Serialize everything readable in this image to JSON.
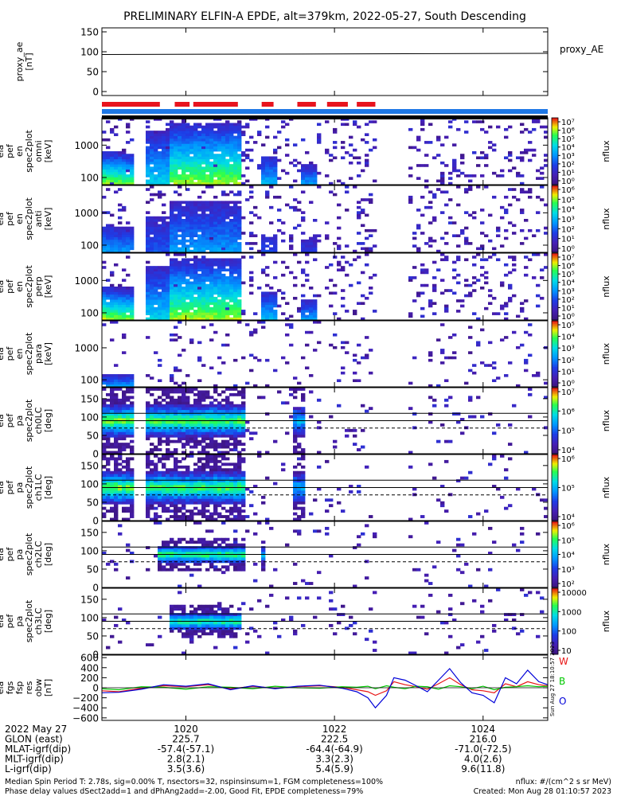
{
  "figure": {
    "title": "PRELIMINARY ELFIN-A EPDE, alt=379km, 2022-05-27, South Descending",
    "created": "Created: Mon Aug 28 01:10:57 2023",
    "side_stamp": "Sun Aug 27 18:10:57 2023",
    "footer_left_1": "Median Spin Period T: 2.78s, sig=0.00% T, nsectors=32, nspinsinsum=1, FGM completeness=100%",
    "footer_left_2": "Phase delay values dSect2add=1 and dPhAng2add=-2.00, Good Fit, EPDE completeness=79%",
    "footer_right_1": "nflux: #/(cm^2 s sr MeV)"
  },
  "colors": {
    "axes": "#000000",
    "bar_red": "#e8141e",
    "bar_blue": "#1e78e6",
    "bar_black": "#000000",
    "flux_low": "#3c1478",
    "flux_mid": "#00c8ff",
    "flux_high": "#30ff30",
    "mag_red": "#e81414",
    "mag_green": "#00c800",
    "mag_blue": "#0000d8"
  },
  "chart_data": {
    "type": "heatmap",
    "x_ticks": [
      "1020",
      "1022",
      "1024"
    ],
    "x_tick_values": [
      1020,
      1022,
      1024
    ],
    "x_range": [
      1018.87,
      1024.87
    ],
    "gap_intervals": [
      [
        1019.3,
        1019.45
      ],
      [
        1021.8,
        1021.86
      ],
      [
        1021.98,
        1022.0
      ],
      [
        1022.55,
        1022.98
      ]
    ],
    "bar_red_segments": [
      [
        1018.87,
        1019.65
      ],
      [
        1019.85,
        1020.05
      ],
      [
        1020.1,
        1020.7
      ],
      [
        1021.02,
        1021.18
      ],
      [
        1021.5,
        1021.75
      ],
      [
        1021.9,
        1022.18
      ],
      [
        1022.3,
        1022.55
      ]
    ],
    "panels": [
      {
        "ylabel": "proxy_ae [nT]",
        "kind": "line",
        "legend": "proxy_AE",
        "yticks": [
          "150",
          "100",
          "50",
          "0"
        ],
        "ytick_values": [
          150,
          100,
          50,
          0
        ],
        "ylim": [
          -10,
          160
        ],
        "x": [
          1018.87,
          1024.87
        ],
        "y": [
          93,
          96
        ]
      },
      {
        "ylabel": "ela pef en spec2plot omni [keV]",
        "kind": "energy",
        "yticks": [
          "1000",
          "100"
        ],
        "ytick_values": [
          1000,
          100
        ],
        "ylim_log": [
          60,
          7000
        ],
        "cbar_ticks": [
          "10⁷",
          "10⁶",
          "10⁵",
          "10⁴",
          "10³",
          "10²",
          "10¹",
          "10⁰"
        ],
        "cbar_label": "nflux",
        "profile": "bright",
        "seed": 11
      },
      {
        "ylabel": "ela pef en spec2plot anti [keV]",
        "kind": "energy",
        "yticks": [
          "1000",
          "100"
        ],
        "ytick_values": [
          1000,
          100
        ],
        "ylim_log": [
          60,
          7000
        ],
        "cbar_ticks": [
          "10⁶",
          "10⁵",
          "10⁴",
          "10³",
          "10²",
          "10¹",
          "10⁰"
        ],
        "cbar_label": "nflux",
        "profile": "faint",
        "seed": 23
      },
      {
        "ylabel": "ela pef en spec2plot perp [keV]",
        "kind": "energy",
        "yticks": [
          "1000",
          "100"
        ],
        "ytick_values": [
          1000,
          100
        ],
        "ylim_log": [
          60,
          7000
        ],
        "cbar_ticks": [
          "10⁷",
          "10⁶",
          "10⁵",
          "10⁴",
          "10³",
          "10²",
          "10¹",
          "10⁰"
        ],
        "cbar_label": "nflux",
        "profile": "bright",
        "seed": 37
      },
      {
        "ylabel": "ela pef en spec2plot para [keV]",
        "kind": "energy",
        "yticks": [
          "1000",
          "100"
        ],
        "ytick_values": [
          1000,
          100
        ],
        "ylim_log": [
          60,
          7000
        ],
        "cbar_ticks": [
          "10⁵",
          "10⁴",
          "10³",
          "10²",
          "10¹",
          "10⁰"
        ],
        "cbar_label": "nflux",
        "profile": "veryfaint",
        "seed": 41
      },
      {
        "ylabel": "ela pef pa spec2plot ch0LC [deg]",
        "kind": "pitch",
        "yticks": [
          "150",
          "100",
          "50",
          "0"
        ],
        "ytick_values": [
          150,
          100,
          50,
          0
        ],
        "ylim": [
          0,
          180
        ],
        "lc_lines": [
          110,
          90,
          70
        ],
        "cbar_ticks": [
          "10⁷",
          "10⁶",
          "10⁵",
          "10⁴"
        ],
        "cbar_label": "nflux",
        "profile": "ch0",
        "seed": 53
      },
      {
        "ylabel": "ela pef pa spec2plot ch1LC [deg]",
        "kind": "pitch",
        "yticks": [
          "150",
          "100",
          "50",
          "0"
        ],
        "ytick_values": [
          150,
          100,
          50,
          0
        ],
        "ylim": [
          0,
          180
        ],
        "lc_lines": [
          110,
          90,
          70
        ],
        "cbar_ticks": [
          "10⁶",
          "10⁵",
          "10⁴"
        ],
        "cbar_label": "nflux",
        "profile": "ch1",
        "seed": 67
      },
      {
        "ylabel": "ela pef pa spec2plot ch2LC [deg]",
        "kind": "pitch",
        "yticks": [
          "150",
          "100",
          "50",
          "0"
        ],
        "ytick_values": [
          150,
          100,
          50,
          0
        ],
        "ylim": [
          0,
          180
        ],
        "lc_lines": [
          110,
          90,
          70
        ],
        "cbar_ticks": [
          "10⁶",
          "10⁵",
          "10⁴",
          "10³",
          "10²"
        ],
        "cbar_label": "nflux",
        "profile": "ch2",
        "seed": 79
      },
      {
        "ylabel": "ela pef pa spec2plot ch3LC [deg]",
        "kind": "pitch",
        "yticks": [
          "150",
          "100",
          "50",
          "0"
        ],
        "ytick_values": [
          150,
          100,
          50,
          0
        ],
        "ylim": [
          0,
          180
        ],
        "lc_lines": [
          110,
          90,
          70
        ],
        "cbar_ticks": [
          "10000",
          "1000",
          "100",
          "10"
        ],
        "cbar_label": "nflux",
        "profile": "ch3",
        "seed": 97
      },
      {
        "ylabel": "ela fgs fsp res obw [nT]",
        "kind": "mag",
        "yticks": [
          "600",
          "400",
          "200",
          "0",
          "−200",
          "−400",
          "−600"
        ],
        "ytick_values": [
          600,
          400,
          200,
          0,
          -200,
          -400,
          -600
        ],
        "ylim": [
          -650,
          650
        ],
        "legend": [
          "W",
          "B",
          "O"
        ],
        "series": [
          {
            "name": "W",
            "x": [
              1018.87,
              1019.1,
              1019.4,
              1019.7,
              1020.0,
              1020.3,
              1020.6,
              1020.9,
              1021.2,
              1021.5,
              1021.8,
              1022.1,
              1022.3,
              1022.45,
              1022.55,
              1022.7,
              1022.8,
              1022.95,
              1023.1,
              1023.25,
              1023.4,
              1023.55,
              1023.7,
              1023.85,
              1024.0,
              1024.15,
              1024.3,
              1024.45,
              1024.6,
              1024.75,
              1024.87
            ],
            "y": [
              -60,
              -80,
              -10,
              40,
              20,
              60,
              -20,
              30,
              -10,
              20,
              40,
              10,
              -40,
              -80,
              -150,
              -60,
              120,
              60,
              20,
              -30,
              80,
              200,
              60,
              -40,
              -60,
              -100,
              80,
              20,
              120,
              60,
              40
            ]
          },
          {
            "name": "B",
            "x": [
              1018.87,
              1019.1,
              1019.4,
              1019.7,
              1020.0,
              1020.3,
              1020.6,
              1020.9,
              1021.2,
              1021.5,
              1021.8,
              1022.1,
              1022.3,
              1022.45,
              1022.55,
              1022.7,
              1022.8,
              1022.95,
              1023.1,
              1023.25,
              1023.4,
              1023.55,
              1023.7,
              1023.85,
              1024.0,
              1024.15,
              1024.3,
              1024.45,
              1024.6,
              1024.75,
              1024.87
            ],
            "y": [
              -20,
              -40,
              20,
              10,
              -30,
              20,
              10,
              -20,
              30,
              0,
              -10,
              20,
              10,
              30,
              -20,
              40,
              10,
              -20,
              30,
              20,
              -30,
              40,
              20,
              -20,
              30,
              -40,
              10,
              20,
              40,
              20,
              30
            ]
          },
          {
            "name": "O",
            "x": [
              1018.87,
              1019.1,
              1019.4,
              1019.7,
              1020.0,
              1020.3,
              1020.6,
              1020.9,
              1021.2,
              1021.5,
              1021.8,
              1022.1,
              1022.3,
              1022.45,
              1022.55,
              1022.7,
              1022.8,
              1022.95,
              1023.1,
              1023.25,
              1023.4,
              1023.55,
              1023.7,
              1023.85,
              1024.0,
              1024.15,
              1024.3,
              1024.45,
              1024.6,
              1024.75,
              1024.87
            ],
            "y": [
              -100,
              -90,
              -30,
              60,
              30,
              80,
              -40,
              40,
              -20,
              30,
              50,
              -10,
              -80,
              -200,
              -400,
              -150,
              200,
              150,
              40,
              -80,
              150,
              380,
              100,
              -100,
              -150,
              -300,
              200,
              80,
              350,
              120,
              60
            ]
          }
        ]
      }
    ]
  },
  "orbit_table": {
    "rows": [
      {
        "label": "2022 May 27",
        "values": [
          "1020",
          "1022",
          "1024"
        ]
      },
      {
        "label": "GLON (east)",
        "values": [
          "225.7",
          "222.5",
          "216.0"
        ]
      },
      {
        "label": "MLAT-igrf(dip)",
        "values": [
          "-57.4(-57.1)",
          "-64.4(-64.9)",
          "-71.0(-72.5)"
        ]
      },
      {
        "label": "MLT-igrf(dip)",
        "values": [
          "2.8(2.1)",
          "3.3(2.3)",
          "4.0(2.6)"
        ]
      },
      {
        "label": "L-igrf(dip)",
        "values": [
          "3.5(3.6)",
          "5.4(5.9)",
          "9.6(11.8)"
        ]
      }
    ]
  }
}
